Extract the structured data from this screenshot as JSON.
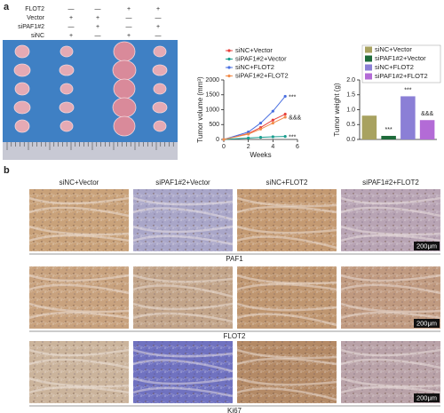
{
  "panels": [
    "a",
    "b"
  ],
  "conditions": {
    "rows": [
      {
        "label": "FLOT2",
        "marks": [
          "—",
          "—",
          "+",
          "+"
        ]
      },
      {
        "label": "Vector",
        "marks": [
          "+",
          "+",
          "—",
          "—"
        ]
      },
      {
        "label": "siPAF1#2",
        "marks": [
          "—",
          "+",
          "—",
          "+"
        ]
      },
      {
        "label": "siNC",
        "marks": [
          "+",
          "—",
          "+",
          "—"
        ]
      }
    ]
  },
  "chart_data": [
    {
      "type": "line",
      "ylabel": "Tumor volume (mm³)",
      "xlabel": "Weeks",
      "x": [
        0,
        2,
        3,
        4,
        5
      ],
      "xlim": [
        0,
        6
      ],
      "xticks": [
        0,
        2,
        4,
        6
      ],
      "ylim": [
        0,
        2000
      ],
      "yticks": [
        0,
        500,
        1000,
        1500,
        2000
      ],
      "series": [
        {
          "name": "siNC+Vector",
          "color": "#e8413c",
          "values": [
            0,
            200,
            400,
            650,
            850
          ]
        },
        {
          "name": "siPAF1#2+Vector",
          "color": "#1a9e8f",
          "values": [
            0,
            50,
            70,
            90,
            100
          ],
          "annotation": "***"
        },
        {
          "name": "siNC+FLOT2",
          "color": "#4a6fe0",
          "values": [
            0,
            250,
            550,
            950,
            1450
          ],
          "annotation": "***"
        },
        {
          "name": "siPAF1#2+FLOT2",
          "color": "#f28c4a",
          "values": [
            0,
            180,
            350,
            550,
            750
          ],
          "annotation": "&&&"
        }
      ]
    },
    {
      "type": "bar",
      "ylabel": "Tumor weight (g)",
      "ylim": [
        0,
        2
      ],
      "yticks": [
        {
          "value": 0,
          "label": "0.0"
        },
        0.5,
        {
          "value": 1,
          "label": "1.0"
        },
        1.5,
        {
          "value": 2,
          "label": "2.0"
        }
      ],
      "series": [
        {
          "name": "siNC+Vector",
          "color": "#a8a260",
          "values": [
            0.8
          ]
        },
        {
          "name": "siPAF1#2+Vector",
          "color": "#1e6b3a",
          "values": [
            0.12
          ],
          "annotation": "***"
        },
        {
          "name": "siNC+FLOT2",
          "color": "#8b7fd6",
          "values": [
            1.45
          ],
          "annotation": "***"
        },
        {
          "name": "siPAF1#2+FLOT2",
          "color": "#b36bd6",
          "values": [
            0.65
          ],
          "annotation": "&&&"
        }
      ]
    }
  ],
  "histology": {
    "columns": [
      "siNC+Vector",
      "siPAF1#2+Vector",
      "siNC+FLOT2",
      "siPAF1#2+FLOT2"
    ],
    "stains": [
      "PAF1",
      "FLOT2",
      "Ki67"
    ],
    "scale_bar": "200μm"
  }
}
